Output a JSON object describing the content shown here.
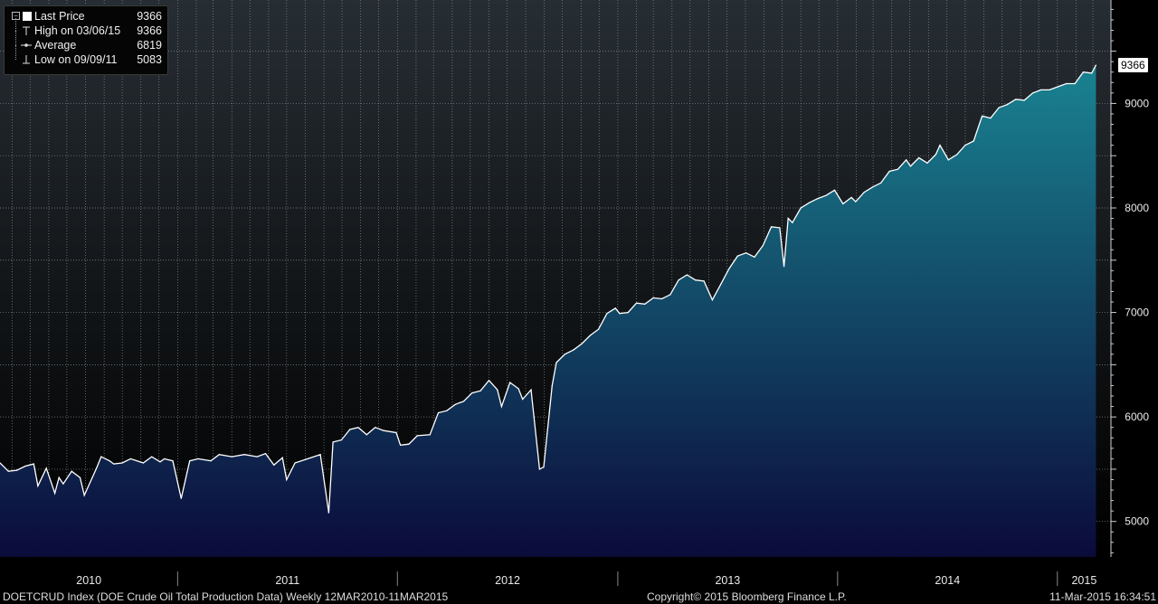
{
  "legend": {
    "last_price_label": "Last Price",
    "last_price_value": "9366",
    "high_label": "High on 03/06/15",
    "high_value": "9366",
    "average_label": "Average",
    "average_value": "6819",
    "low_label": "Low on 09/09/11",
    "low_value": "5083"
  },
  "last_price_tag": "9366",
  "footer": {
    "description": "DOETCRUD Index (DOE Crude Oil Total Production Data)  Weekly 12MAR2010-11MAR2015",
    "copyright": "Copyright© 2015 Bloomberg Finance L.P.",
    "timestamp": "11-Mar-2015 16:34:51"
  },
  "colors": {
    "background_top": "#262d33",
    "background_bottom": "#000000",
    "area_top": "#1a8a96",
    "area_bottom": "#0b0b3a",
    "line": "#ffffff",
    "grid": "#8a8a8a"
  },
  "chart_data": {
    "type": "area",
    "title": "",
    "xlabel": "",
    "ylabel": "",
    "ylim": [
      4660,
      9990
    ],
    "xlim": [
      "2010-03-12",
      "2015-03-31"
    ],
    "y_ticks": [
      5000,
      6000,
      7000,
      8000,
      9000
    ],
    "x_tick_labels": [
      "2010",
      "2011",
      "2012",
      "2013",
      "2014",
      "2015"
    ],
    "grid": true,
    "legend_position": "top-left",
    "series": [
      {
        "name": "Last Price",
        "points": [
          [
            "2010-03-12",
            5560
          ],
          [
            "2010-03-26",
            5480
          ],
          [
            "2010-04-09",
            5490
          ],
          [
            "2010-04-23",
            5530
          ],
          [
            "2010-05-07",
            5550
          ],
          [
            "2010-05-14",
            5340
          ],
          [
            "2010-05-28",
            5510
          ],
          [
            "2010-06-11",
            5270
          ],
          [
            "2010-06-18",
            5420
          ],
          [
            "2010-06-25",
            5360
          ],
          [
            "2010-07-09",
            5480
          ],
          [
            "2010-07-23",
            5420
          ],
          [
            "2010-07-30",
            5250
          ],
          [
            "2010-08-20",
            5520
          ],
          [
            "2010-08-27",
            5620
          ],
          [
            "2010-09-10",
            5580
          ],
          [
            "2010-09-17",
            5550
          ],
          [
            "2010-10-01",
            5560
          ],
          [
            "2010-10-15",
            5600
          ],
          [
            "2010-11-05",
            5560
          ],
          [
            "2010-11-19",
            5620
          ],
          [
            "2010-12-03",
            5570
          ],
          [
            "2010-12-10",
            5600
          ],
          [
            "2010-12-24",
            5580
          ],
          [
            "2011-01-07",
            5220
          ],
          [
            "2011-01-21",
            5580
          ],
          [
            "2011-02-04",
            5600
          ],
          [
            "2011-02-25",
            5580
          ],
          [
            "2011-03-11",
            5640
          ],
          [
            "2011-04-01",
            5620
          ],
          [
            "2011-04-22",
            5640
          ],
          [
            "2011-05-13",
            5620
          ],
          [
            "2011-05-27",
            5650
          ],
          [
            "2011-06-10",
            5540
          ],
          [
            "2011-06-24",
            5610
          ],
          [
            "2011-07-01",
            5400
          ],
          [
            "2011-07-15",
            5560
          ],
          [
            "2011-08-05",
            5600
          ],
          [
            "2011-08-26",
            5640
          ],
          [
            "2011-09-09",
            5083
          ],
          [
            "2011-09-16",
            5760
          ],
          [
            "2011-09-30",
            5780
          ],
          [
            "2011-10-14",
            5880
          ],
          [
            "2011-10-28",
            5900
          ],
          [
            "2011-11-11",
            5830
          ],
          [
            "2011-11-25",
            5900
          ],
          [
            "2011-12-09",
            5870
          ],
          [
            "2011-12-30",
            5850
          ],
          [
            "2012-01-06",
            5730
          ],
          [
            "2012-01-20",
            5740
          ],
          [
            "2012-02-03",
            5820
          ],
          [
            "2012-02-24",
            5830
          ],
          [
            "2012-03-09",
            6040
          ],
          [
            "2012-03-23",
            6060
          ],
          [
            "2012-04-06",
            6120
          ],
          [
            "2012-04-20",
            6150
          ],
          [
            "2012-05-04",
            6230
          ],
          [
            "2012-05-18",
            6250
          ],
          [
            "2012-06-01",
            6350
          ],
          [
            "2012-06-15",
            6260
          ],
          [
            "2012-06-22",
            6100
          ],
          [
            "2012-07-06",
            6330
          ],
          [
            "2012-07-20",
            6270
          ],
          [
            "2012-07-27",
            6170
          ],
          [
            "2012-08-10",
            6260
          ],
          [
            "2012-08-24",
            5500
          ],
          [
            "2012-08-31",
            5520
          ],
          [
            "2012-09-14",
            6300
          ],
          [
            "2012-09-21",
            6520
          ],
          [
            "2012-10-05",
            6600
          ],
          [
            "2012-10-19",
            6640
          ],
          [
            "2012-11-02",
            6700
          ],
          [
            "2012-11-16",
            6780
          ],
          [
            "2012-11-30",
            6840
          ],
          [
            "2012-12-14",
            6990
          ],
          [
            "2012-12-28",
            7040
          ],
          [
            "2013-01-04",
            6990
          ],
          [
            "2013-01-18",
            7000
          ],
          [
            "2013-02-01",
            7090
          ],
          [
            "2013-02-15",
            7080
          ],
          [
            "2013-03-01",
            7140
          ],
          [
            "2013-03-15",
            7130
          ],
          [
            "2013-03-29",
            7170
          ],
          [
            "2013-04-12",
            7310
          ],
          [
            "2013-04-26",
            7360
          ],
          [
            "2013-05-10",
            7310
          ],
          [
            "2013-05-24",
            7300
          ],
          [
            "2013-06-07",
            7120
          ],
          [
            "2013-06-21",
            7270
          ],
          [
            "2013-07-05",
            7420
          ],
          [
            "2013-07-19",
            7540
          ],
          [
            "2013-08-02",
            7570
          ],
          [
            "2013-08-16",
            7530
          ],
          [
            "2013-08-30",
            7640
          ],
          [
            "2013-09-13",
            7820
          ],
          [
            "2013-09-27",
            7810
          ],
          [
            "2013-10-04",
            7440
          ],
          [
            "2013-10-11",
            7900
          ],
          [
            "2013-10-18",
            7860
          ],
          [
            "2013-11-01",
            8000
          ],
          [
            "2013-11-15",
            8050
          ],
          [
            "2013-11-29",
            8090
          ],
          [
            "2013-12-13",
            8120
          ],
          [
            "2013-12-27",
            8170
          ],
          [
            "2014-01-10",
            8040
          ],
          [
            "2014-01-24",
            8100
          ],
          [
            "2014-01-31",
            8060
          ],
          [
            "2014-02-14",
            8150
          ],
          [
            "2014-02-28",
            8200
          ],
          [
            "2014-03-14",
            8240
          ],
          [
            "2014-03-28",
            8350
          ],
          [
            "2014-04-11",
            8370
          ],
          [
            "2014-04-25",
            8460
          ],
          [
            "2014-05-02",
            8400
          ],
          [
            "2014-05-16",
            8480
          ],
          [
            "2014-05-30",
            8430
          ],
          [
            "2014-06-13",
            8510
          ],
          [
            "2014-06-20",
            8600
          ],
          [
            "2014-07-04",
            8460
          ],
          [
            "2014-07-18",
            8510
          ],
          [
            "2014-08-01",
            8600
          ],
          [
            "2014-08-15",
            8640
          ],
          [
            "2014-08-29",
            8880
          ],
          [
            "2014-09-12",
            8860
          ],
          [
            "2014-09-26",
            8960
          ],
          [
            "2014-10-10",
            8990
          ],
          [
            "2014-10-24",
            9040
          ],
          [
            "2014-11-07",
            9030
          ],
          [
            "2014-11-21",
            9100
          ],
          [
            "2014-12-05",
            9130
          ],
          [
            "2014-12-19",
            9130
          ],
          [
            "2015-01-02",
            9160
          ],
          [
            "2015-01-16",
            9190
          ],
          [
            "2015-01-30",
            9190
          ],
          [
            "2015-02-13",
            9300
          ],
          [
            "2015-02-27",
            9290
          ],
          [
            "2015-03-06",
            9366
          ]
        ]
      }
    ]
  }
}
